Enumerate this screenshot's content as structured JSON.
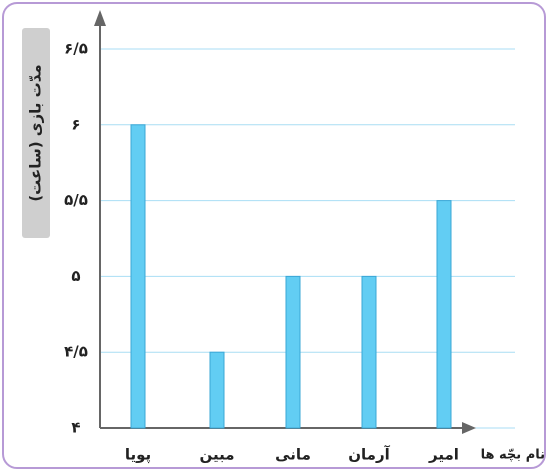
{
  "chart_data": {
    "type": "bar",
    "y_label": "مدّت بازی (ساعت)",
    "x_label": "نام بچّه ها",
    "categories": [
      "پویا",
      "مبین",
      "مانی",
      "آرمان",
      "امیر"
    ],
    "values": [
      6,
      4.5,
      5,
      5,
      5.5
    ],
    "color": "#62cdf3",
    "ylim": [
      4,
      6.5
    ],
    "yticks": [
      {
        "value": 4,
        "label": "۴"
      },
      {
        "value": 4.5,
        "label": "۴/۵"
      },
      {
        "value": 5,
        "label": "۵"
      },
      {
        "value": 5.5,
        "label": "۵/۵"
      },
      {
        "value": 6,
        "label": "۶"
      },
      {
        "value": 6.5,
        "label": "۶/۵"
      }
    ],
    "grid": true
  }
}
